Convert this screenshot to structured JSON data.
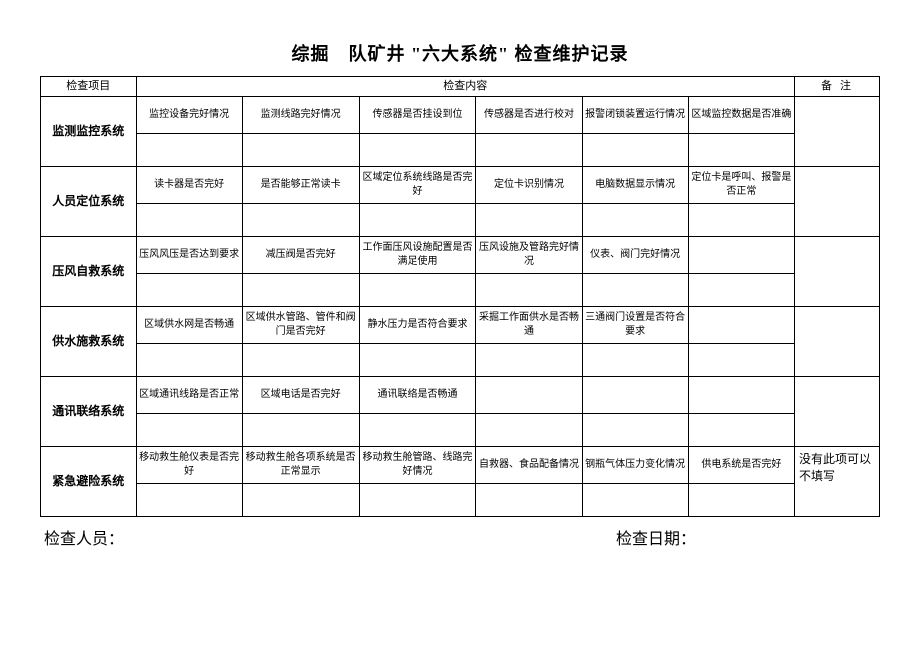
{
  "title": "综掘　队矿井 \"六大系统\" 检查维护记录",
  "header": {
    "col_project": "检查项目",
    "col_content": "检查内容",
    "col_remark": "备注"
  },
  "rows": [
    {
      "name": "监测监控系统",
      "cells": [
        "监控设备完好情况",
        "监测线路完好情况",
        "传感器是否挂设到位",
        "传感器是否进行校对",
        "报警闭锁装置运行情况",
        "区域监控数据是否准确"
      ],
      "remark": ""
    },
    {
      "name": "人员定位系统",
      "cells": [
        "读卡器是否完好",
        "是否能够正常读卡",
        "区域定位系统线路是否完好",
        "定位卡识别情况",
        "电脑数据显示情况",
        "定位卡是呼叫、报警是否正常"
      ],
      "remark": ""
    },
    {
      "name": "压风自救系统",
      "cells": [
        "压风风压是否达到要求",
        "减压阀是否完好",
        "工作面压风设施配置是否满足使用",
        "压风设施及管路完好情况",
        "仪表、阀门完好情况",
        ""
      ],
      "remark": ""
    },
    {
      "name": "供水施救系统",
      "cells": [
        "区域供水网是否畅通",
        "区域供水管路、管件和阀门是否完好",
        "静水压力是否符合要求",
        "采掘工作面供水是否畅通",
        "三通阀门设置是否符合要求",
        ""
      ],
      "remark": ""
    },
    {
      "name": "通讯联络系统",
      "cells": [
        "区域通讯线路是否正常",
        "区域电话是否完好",
        "通讯联络是否畅通",
        "",
        "",
        ""
      ],
      "remark": ""
    },
    {
      "name": "紧急避险系统",
      "cells": [
        "移动救生舱仪表是否完好",
        "移动救生舱各项系统是否正常显示",
        "移动救生舱管路、线路完好情况",
        "自救器、食品配备情况",
        "钢瓶气体压力变化情况",
        "供电系统是否完好"
      ],
      "remark": "没有此项可以不填写"
    }
  ],
  "footer": {
    "inspector_label": "检查人员：",
    "date_label": "检查日期："
  },
  "style": {
    "remark_fontsize_alt": 12
  }
}
